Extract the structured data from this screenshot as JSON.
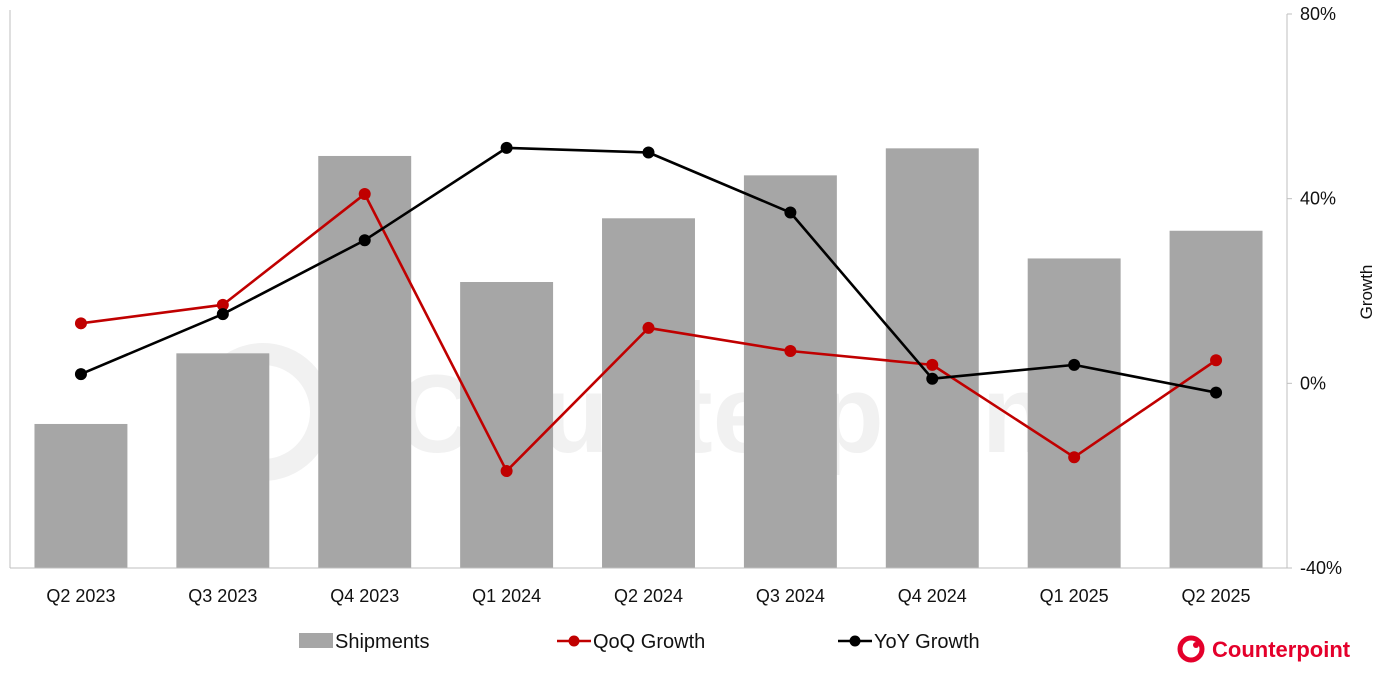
{
  "chart_data": {
    "type": "bar",
    "categories": [
      "Q2 2023",
      "Q3 2023",
      "Q4 2023",
      "Q1 2024",
      "Q2 2024",
      "Q3 2024",
      "Q4 2024",
      "Q1 2025",
      "Q2 2025"
    ],
    "series": [
      {
        "name": "Shipments",
        "type": "bar",
        "axis": "left",
        "color": "#a6a6a6",
        "values": [
          20.8,
          31.0,
          59.5,
          41.3,
          50.5,
          56.7,
          60.6,
          44.7,
          48.7
        ]
      },
      {
        "name": "QoQ Growth",
        "type": "line",
        "axis": "right",
        "color": "#c00000",
        "values": [
          13,
          17,
          41,
          -19,
          12,
          7,
          4,
          -16,
          5
        ]
      },
      {
        "name": "YoY Growth",
        "type": "line",
        "axis": "right",
        "color": "#000000",
        "values": [
          2,
          15,
          31,
          51,
          50,
          37,
          1,
          4,
          -2
        ]
      }
    ],
    "left_axis": {
      "ylim": [
        0,
        80
      ],
      "ticks_shown": false
    },
    "right_axis": {
      "label": "Growth",
      "ylim": [
        -40,
        80
      ],
      "ticks": [
        -40,
        0,
        40,
        80
      ],
      "tick_labels": [
        "-40%",
        "0%",
        "40%",
        "80%"
      ]
    },
    "legend": {
      "position": "bottom",
      "entries": [
        "Shipments",
        "QoQ Growth",
        "YoY Growth"
      ]
    },
    "grid": false
  },
  "branding": {
    "logo_text": "Counterpoint",
    "watermark_text": "Counterpoint",
    "accent": "#e4002b"
  }
}
